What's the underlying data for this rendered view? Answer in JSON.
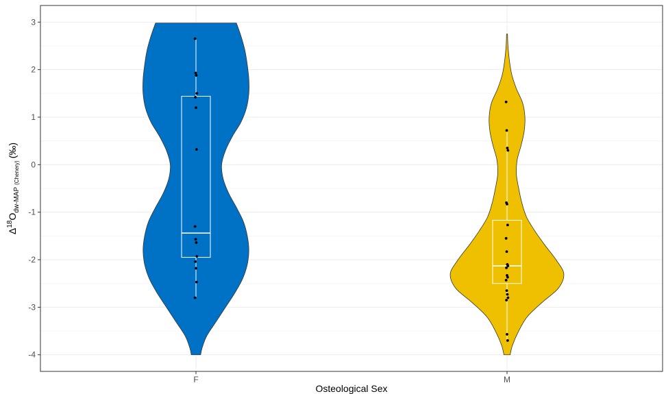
{
  "chart_data": {
    "type": "violin",
    "xlabel": "Osteological Sex",
    "ylabel": {
      "delta": "Δ",
      "sup": "18",
      "base": "O",
      "sub": "dw-MAP",
      "sub_small": "(Chenery)",
      "unit": "(‰)"
    },
    "ylim": [
      -4.35,
      3.35
    ],
    "yticks": [
      -4,
      -3,
      -2,
      -1,
      0,
      1,
      2,
      3
    ],
    "ytick_labels": [
      "-4",
      "-3",
      "-2",
      "-1",
      "0",
      "1",
      "2",
      "3"
    ],
    "grid": true,
    "legend": "none",
    "categories": [
      "F",
      "M"
    ],
    "series": [
      {
        "category": "F",
        "color": "#0072c6",
        "box": {
          "q1": -1.95,
          "median": -1.44,
          "q3": 1.44,
          "whisker_low": -2.8,
          "whisker_high": 2.65
        },
        "points": [
          2.65,
          1.93,
          1.88,
          1.5,
          1.42,
          1.2,
          0.32,
          -1.3,
          -1.57,
          -1.64,
          -1.93,
          -2.04,
          -2.18,
          -2.47,
          -2.8
        ],
        "violin": [
          [
            2.98,
            0.26
          ],
          [
            2.7,
            0.29
          ],
          [
            2.4,
            0.315
          ],
          [
            2.1,
            0.33
          ],
          [
            1.8,
            0.34
          ],
          [
            1.5,
            0.34
          ],
          [
            1.2,
            0.325
          ],
          [
            0.9,
            0.29
          ],
          [
            0.6,
            0.235
          ],
          [
            0.3,
            0.19
          ],
          [
            0.0,
            0.165
          ],
          [
            -0.3,
            0.175
          ],
          [
            -0.6,
            0.21
          ],
          [
            -0.9,
            0.26
          ],
          [
            -1.2,
            0.305
          ],
          [
            -1.5,
            0.33
          ],
          [
            -1.8,
            0.34
          ],
          [
            -2.1,
            0.33
          ],
          [
            -2.4,
            0.3
          ],
          [
            -2.7,
            0.25
          ],
          [
            -3.0,
            0.19
          ],
          [
            -3.3,
            0.13
          ],
          [
            -3.6,
            0.07
          ],
          [
            -3.85,
            0.04
          ],
          [
            -4.0,
            0.03
          ]
        ]
      },
      {
        "category": "M",
        "color": "#efc000",
        "box": {
          "q1": -2.5,
          "median": -2.13,
          "q3": -1.17,
          "whisker_low": -3.7,
          "whisker_high": 0.72
        },
        "points": [
          1.32,
          0.72,
          0.35,
          0.3,
          -0.8,
          -0.83,
          -1.27,
          -1.55,
          -1.83,
          -2.1,
          -2.13,
          -2.17,
          -2.33,
          -2.37,
          -2.43,
          -2.65,
          -2.73,
          -2.8,
          -2.85,
          -3.57,
          -3.7
        ],
        "violin": [
          [
            2.75,
            0.003
          ],
          [
            2.5,
            0.006
          ],
          [
            2.2,
            0.015
          ],
          [
            1.9,
            0.03
          ],
          [
            1.6,
            0.06
          ],
          [
            1.3,
            0.1
          ],
          [
            1.0,
            0.115
          ],
          [
            0.7,
            0.11
          ],
          [
            0.4,
            0.09
          ],
          [
            0.1,
            0.065
          ],
          [
            -0.2,
            0.06
          ],
          [
            -0.5,
            0.075
          ],
          [
            -0.8,
            0.095
          ],
          [
            -1.1,
            0.125
          ],
          [
            -1.4,
            0.18
          ],
          [
            -1.7,
            0.245
          ],
          [
            -2.0,
            0.315
          ],
          [
            -2.3,
            0.365
          ],
          [
            -2.6,
            0.33
          ],
          [
            -2.9,
            0.225
          ],
          [
            -3.2,
            0.13
          ],
          [
            -3.5,
            0.075
          ],
          [
            -3.8,
            0.035
          ],
          [
            -4.0,
            0.02
          ]
        ]
      }
    ]
  }
}
